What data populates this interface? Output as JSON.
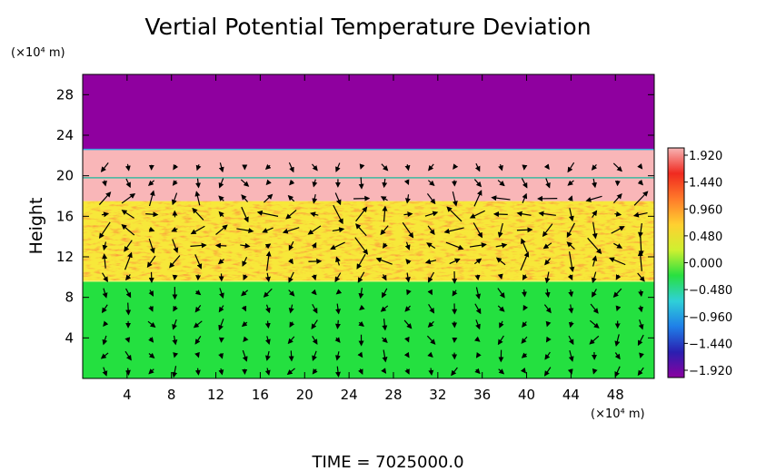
{
  "chart_data": {
    "type": "heatmap",
    "title": "Vertial Potential Temperature Deviation",
    "ylabel": "Height",
    "y_unit_label": "(×10⁴ m)",
    "x_unit_label": "(×10⁴ m)",
    "footer": "TIME  =  7025000.0",
    "xlim": [
      0,
      51.5
    ],
    "ylim": [
      0,
      30
    ],
    "x_ticks": [
      4,
      8,
      12,
      16,
      20,
      24,
      28,
      32,
      36,
      40,
      44,
      48
    ],
    "y_ticks": [
      4,
      8,
      12,
      16,
      20,
      24,
      28
    ],
    "colorbar": {
      "labels": [
        "1.920",
        "1.440",
        "0.960",
        "0.480",
        "0.000",
        "−0.480",
        "−0.960",
        "−1.440",
        "−1.920"
      ],
      "min": -1.92,
      "max": 1.92,
      "colors": [
        "#8b00a0",
        "#2a1fb0",
        "#1f7fe8",
        "#2fd0d8",
        "#28e040",
        "#cff030",
        "#ffd030",
        "#ff7a2a",
        "#f02a20",
        "#f7b4b4"
      ]
    },
    "bands": [
      {
        "y0": 0,
        "y1": 9.6,
        "value": 0.0,
        "color": "#24e040"
      },
      {
        "y0": 9.6,
        "y1": 17.5,
        "value": 0.96,
        "color": "#f7e83a"
      },
      {
        "y0": 17.5,
        "y1": 22.6,
        "value": 1.92,
        "color": "#f9b6b8"
      },
      {
        "y0": 22.6,
        "y1": 30,
        "value": -1.92,
        "color": "#8f009f"
      }
    ]
  }
}
